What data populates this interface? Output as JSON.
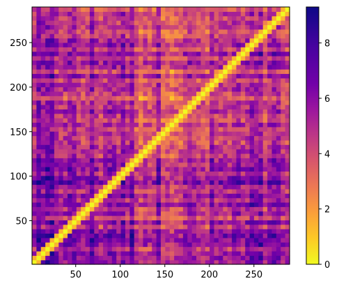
{
  "chart_data": {
    "type": "heatmap",
    "title": "",
    "xlabel": "",
    "ylabel": "",
    "xlim": [
      1,
      290
    ],
    "ylim": [
      1,
      290
    ],
    "x_ticks": [
      50,
      100,
      150,
      200,
      250
    ],
    "y_ticks": [
      50,
      100,
      150,
      200,
      250
    ],
    "y_axis_direction": "increasing-upward",
    "colormap": "plasma_r",
    "diagonal_value": 0,
    "colorbar": {
      "min": 0,
      "max": 9.3,
      "ticks": [
        0,
        2,
        4,
        6,
        8
      ],
      "placement": "right"
    },
    "approximate_row_means": [
      {
        "range": [
          1,
          20
        ],
        "mean": 6.5
      },
      {
        "range": [
          20,
          40
        ],
        "mean": 7.2
      },
      {
        "range": [
          40,
          60
        ],
        "mean": 5.5
      },
      {
        "range": [
          60,
          80
        ],
        "mean": 6.0
      },
      {
        "range": [
          80,
          100
        ],
        "mean": 6.8
      },
      {
        "range": [
          100,
          120
        ],
        "mean": 6.0
      },
      {
        "range": [
          120,
          140
        ],
        "mean": 4.5
      },
      {
        "range": [
          140,
          160
        ],
        "mean": 4.8
      },
      {
        "range": [
          160,
          180
        ],
        "mean": 4.6
      },
      {
        "range": [
          180,
          200
        ],
        "mean": 4.2
      },
      {
        "range": [
          200,
          220
        ],
        "mean": 4.8
      },
      {
        "range": [
          220,
          240
        ],
        "mean": 5.2
      },
      {
        "range": [
          240,
          260
        ],
        "mean": 5.6
      },
      {
        "range": [
          260,
          290
        ],
        "mean": 5.2
      }
    ]
  }
}
